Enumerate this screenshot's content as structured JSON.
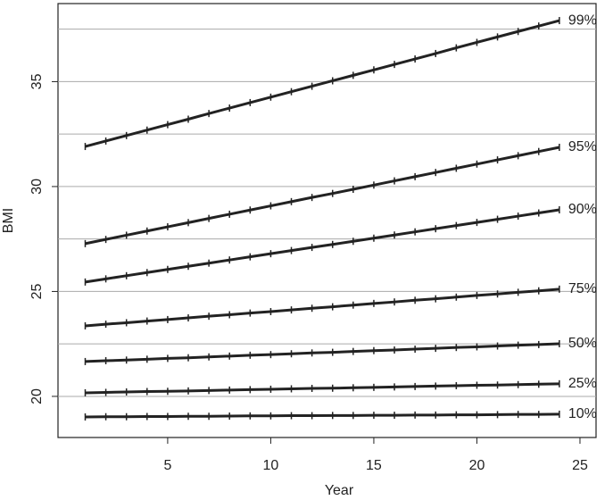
{
  "chart_data": {
    "type": "line",
    "x_label": "Year",
    "y_label": "BMI",
    "x": [
      1,
      2,
      3,
      4,
      5,
      6,
      7,
      8,
      9,
      10,
      11,
      12,
      13,
      14,
      15,
      16,
      17,
      18,
      19,
      20,
      21,
      22,
      23,
      24
    ],
    "xlim": [
      -0.32,
      25.78
    ],
    "xticks": [
      5,
      10,
      15,
      20,
      25
    ],
    "ylim": [
      18.04,
      38.72
    ],
    "yticks": [
      20,
      25,
      30,
      35
    ],
    "ygrid": [
      20,
      22.5,
      25,
      27.5,
      30,
      32.5,
      35,
      37.5
    ],
    "series": [
      {
        "name": "99%",
        "color": "#222222",
        "values": [
          31.91,
          32.17,
          32.43,
          32.69,
          32.95,
          33.21,
          33.48,
          33.74,
          34.0,
          34.26,
          34.52,
          34.78,
          35.04,
          35.3,
          35.56,
          35.82,
          36.08,
          36.34,
          36.61,
          36.87,
          37.13,
          37.39,
          37.65,
          37.91
        ]
      },
      {
        "name": "95%",
        "color": "#222222",
        "values": [
          27.28,
          27.48,
          27.68,
          27.88,
          28.08,
          28.28,
          28.48,
          28.68,
          28.88,
          29.08,
          29.28,
          29.48,
          29.67,
          29.87,
          30.07,
          30.27,
          30.47,
          30.67,
          30.87,
          31.07,
          31.27,
          31.47,
          31.67,
          31.87
        ]
      },
      {
        "name": "90%",
        "color": "#222222",
        "values": [
          25.45,
          25.6,
          25.75,
          25.9,
          26.05,
          26.2,
          26.35,
          26.5,
          26.65,
          26.8,
          26.95,
          27.1,
          27.24,
          27.39,
          27.54,
          27.69,
          27.84,
          27.99,
          28.14,
          28.29,
          28.44,
          28.59,
          28.74,
          28.89
        ]
      },
      {
        "name": "75%",
        "color": "#222222",
        "values": [
          23.36,
          23.44,
          23.51,
          23.59,
          23.66,
          23.74,
          23.82,
          23.89,
          23.97,
          24.04,
          24.12,
          24.2,
          24.27,
          24.35,
          24.43,
          24.5,
          24.58,
          24.65,
          24.73,
          24.81,
          24.88,
          24.96,
          25.03,
          25.11
        ]
      },
      {
        "name": "50%",
        "color": "#222222",
        "values": [
          21.66,
          21.7,
          21.73,
          21.77,
          21.81,
          21.84,
          21.88,
          21.92,
          21.96,
          21.99,
          22.03,
          22.07,
          22.1,
          22.14,
          22.18,
          22.21,
          22.25,
          22.29,
          22.33,
          22.36,
          22.4,
          22.44,
          22.47,
          22.51
        ]
      },
      {
        "name": "25%",
        "color": "#222222",
        "values": [
          20.17,
          20.19,
          20.21,
          20.23,
          20.24,
          20.26,
          20.28,
          20.3,
          20.32,
          20.34,
          20.36,
          20.38,
          20.39,
          20.41,
          20.43,
          20.45,
          20.47,
          20.49,
          20.51,
          20.53,
          20.54,
          20.56,
          20.58,
          20.6
        ]
      },
      {
        "name": "10%",
        "color": "#222222",
        "values": [
          19.02,
          19.03,
          19.03,
          19.04,
          19.04,
          19.05,
          19.05,
          19.06,
          19.07,
          19.07,
          19.08,
          19.08,
          19.09,
          19.09,
          19.1,
          19.1,
          19.11,
          19.11,
          19.12,
          19.12,
          19.13,
          19.14,
          19.14,
          19.15
        ]
      }
    ]
  }
}
